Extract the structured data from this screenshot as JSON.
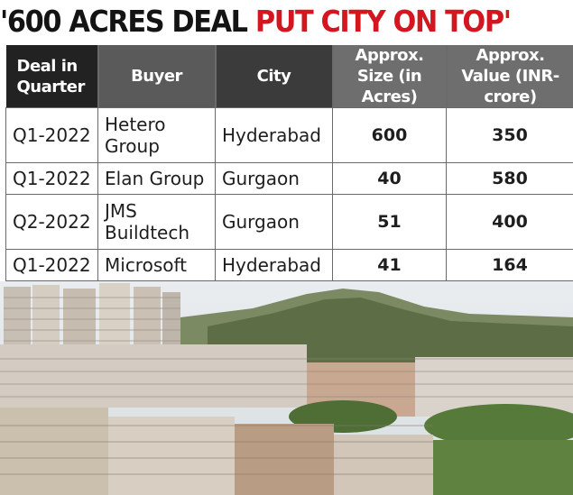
{
  "headline": {
    "black_part": "'600 ACRES DEAL ",
    "red_part": "PUT CITY ON TOP'"
  },
  "table": {
    "headers": {
      "quarter": "Deal in Quarter",
      "buyer": "Buyer",
      "city": "City",
      "size": "Approx. Size (in Acres)",
      "value": "Approx. Value (INR-crore)"
    },
    "rows": [
      {
        "quarter": "Q1-2022",
        "buyer": "Hetero Group",
        "city": "Hyderabad",
        "size": "600",
        "value": "350"
      },
      {
        "quarter": "Q1-2022",
        "buyer": "Elan Group",
        "city": "Gurgaon",
        "size": "40",
        "value": "580"
      },
      {
        "quarter": "Q2-2022",
        "buyer": "JMS Buildtech",
        "city": "Gurgaon",
        "size": "51",
        "value": "400"
      },
      {
        "quarter": "Q1-2022",
        "buyer": "Microsoft",
        "city": "Hyderabad",
        "size": "41",
        "value": "164"
      }
    ]
  },
  "colors": {
    "headline_red": "#d3161f",
    "header_dark": "#3b3b3b"
  }
}
